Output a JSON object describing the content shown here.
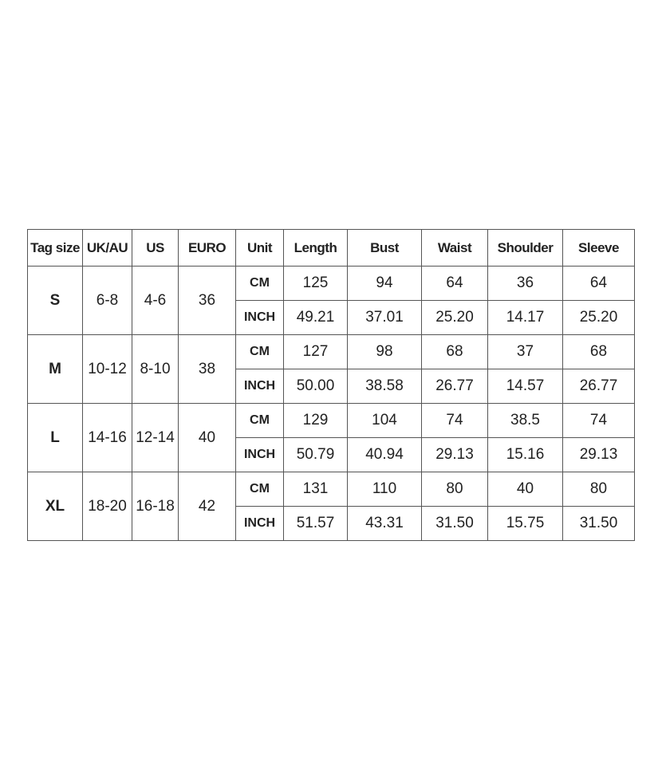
{
  "headers": [
    "Tag size",
    "UK/AU",
    "US",
    "EURO",
    "Unit",
    "Length",
    "Bust",
    "Waist",
    "Shoulder",
    "Sleeve"
  ],
  "sizes": [
    {
      "tag": "S",
      "uk": "6-8",
      "us": "4-6",
      "euro": "36",
      "cm": {
        "unit": "CM",
        "values": [
          "125",
          "94",
          "64",
          "36",
          "64"
        ]
      },
      "inch": {
        "unit": "INCH",
        "values": [
          "49.21",
          "37.01",
          "25.20",
          "14.17",
          "25.20"
        ]
      }
    },
    {
      "tag": "M",
      "uk": "10-12",
      "us": "8-10",
      "euro": "38",
      "cm": {
        "unit": "CM",
        "values": [
          "127",
          "98",
          "68",
          "37",
          "68"
        ]
      },
      "inch": {
        "unit": "INCH",
        "values": [
          "50.00",
          "38.58",
          "26.77",
          "14.57",
          "26.77"
        ]
      }
    },
    {
      "tag": "L",
      "uk": "14-16",
      "us": "12-14",
      "euro": "40",
      "cm": {
        "unit": "CM",
        "values": [
          "129",
          "104",
          "74",
          "38.5",
          "74"
        ]
      },
      "inch": {
        "unit": "INCH",
        "values": [
          "50.79",
          "40.94",
          "29.13",
          "15.16",
          "29.13"
        ]
      }
    },
    {
      "tag": "XL",
      "uk": "18-20",
      "us": "16-18",
      "euro": "42",
      "cm": {
        "unit": "CM",
        "values": [
          "131",
          "110",
          "80",
          "40",
          "80"
        ]
      },
      "inch": {
        "unit": "INCH",
        "values": [
          "51.57",
          "43.31",
          "31.50",
          "15.75",
          "31.50"
        ]
      }
    }
  ]
}
